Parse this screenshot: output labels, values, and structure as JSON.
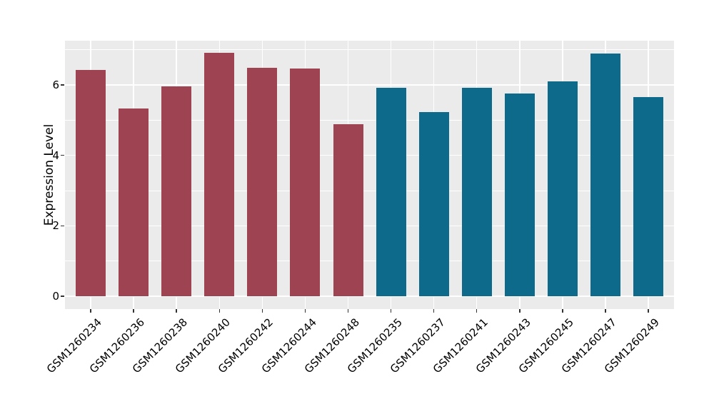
{
  "chart_data": {
    "type": "bar",
    "title": "",
    "xlabel": "",
    "ylabel": "Expression Level",
    "categories": [
      "GSM1260234",
      "GSM1260236",
      "GSM1260238",
      "GSM1260240",
      "GSM1260242",
      "GSM1260244",
      "GSM1260248",
      "GSM1260235",
      "GSM1260237",
      "GSM1260241",
      "GSM1260243",
      "GSM1260245",
      "GSM1260247",
      "GSM1260249"
    ],
    "values": [
      6.42,
      5.33,
      5.96,
      6.91,
      6.5,
      6.47,
      4.89,
      5.92,
      5.24,
      5.92,
      5.76,
      6.11,
      6.89,
      5.66
    ],
    "bar_colors": [
      "#9E4352",
      "#9E4352",
      "#9E4352",
      "#9E4352",
      "#9E4352",
      "#9E4352",
      "#9E4352",
      "#0E6A8B",
      "#0E6A8B",
      "#0E6A8B",
      "#0E6A8B",
      "#0E6A8B",
      "#0E6A8B",
      "#0E6A8B"
    ],
    "color_groups": [
      {
        "color": "#9E4352",
        "count": 7
      },
      {
        "color": "#0E6A8B",
        "count": 7
      }
    ],
    "yticks": [
      0,
      2,
      4,
      6
    ],
    "yticks_minor": [
      1,
      3,
      5,
      7
    ],
    "ylim": [
      -0.37,
      7.26
    ],
    "grid": true,
    "legend": false,
    "style": {
      "panel_background": "#EBEBEB",
      "grid_color": "#FFFFFF",
      "tick_color": "#333333",
      "text_color": "#000000",
      "figure_background": "#FFFFFF"
    }
  }
}
